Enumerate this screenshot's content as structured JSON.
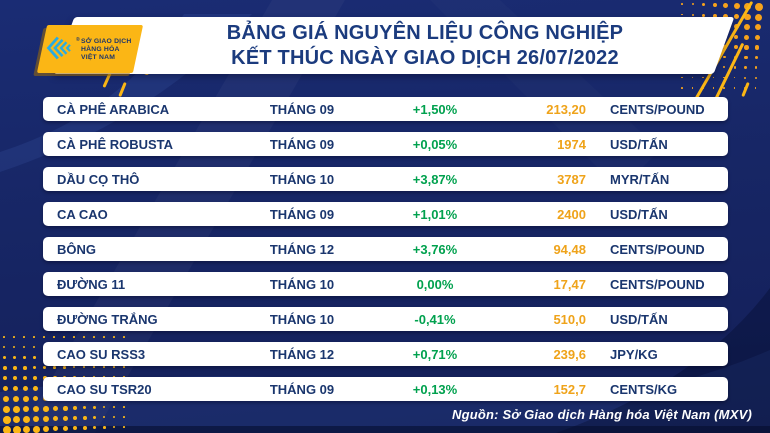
{
  "header": {
    "title_line1": "BẢNG GIÁ NGUYÊN LIỆU CÔNG NGHIỆP",
    "title_line2": "KẾT THÚC NGÀY GIAO DỊCH 26/07/2022",
    "logo": {
      "icon": "mxv-chevron-icon",
      "reg_mark": "®",
      "line1": "SỞ GIAO DỊCH",
      "line2": "HÀNG HÓA",
      "line3": "VIỆT NAM"
    }
  },
  "table": {
    "rows": [
      {
        "name": "CÀ PHÊ ARABICA",
        "month": "THÁNG 09",
        "change": "+1,50%",
        "price": "213,20",
        "unit": "CENTS/POUND"
      },
      {
        "name": "CÀ PHÊ ROBUSTA",
        "month": "THÁNG 09",
        "change": "+0,05%",
        "price": "1974",
        "unit": "USD/TẤN"
      },
      {
        "name": "DẦU CỌ THÔ",
        "month": "THÁNG 10",
        "change": "+3,87%",
        "price": "3787",
        "unit": "MYR/TẤN"
      },
      {
        "name": "CA CAO",
        "month": "THÁNG 09",
        "change": "+1,01%",
        "price": "2400",
        "unit": "USD/TẤN"
      },
      {
        "name": "BÔNG",
        "month": "THÁNG 12",
        "change": "+3,76%",
        "price": "94,48",
        "unit": "CENTS/POUND"
      },
      {
        "name": "ĐƯỜNG 11",
        "month": "THÁNG 10",
        "change": "0,00%",
        "price": "17,47",
        "unit": "CENTS/POUND"
      },
      {
        "name": "ĐƯỜNG TRẮNG",
        "month": "THÁNG 10",
        "change": "-0,41%",
        "price": "510,0",
        "unit": "USD/TẤN"
      },
      {
        "name": "CAO SU RSS3",
        "month": "THÁNG 12",
        "change": "+0,71%",
        "price": "239,6",
        "unit": "JPY/KG"
      },
      {
        "name": "CAO SU TSR20",
        "month": "THÁNG 09",
        "change": "+0,13%",
        "price": "152,7",
        "unit": "CENTS/KG"
      }
    ]
  },
  "footer": {
    "source": "Nguồn: Sở Giao dịch Hàng hóa Việt Nam (MXV)"
  },
  "chart_data": {
    "type": "table",
    "title": "BẢNG GIÁ NGUYÊN LIỆU CÔNG NGHIỆP KẾT THÚC NGÀY GIAO DỊCH 26/07/2022",
    "rows": [
      {
        "commodity": "CÀ PHÊ ARABICA",
        "contract_month": "THÁNG 09",
        "change_pct": 1.5,
        "price": 213.2,
        "unit": "CENTS/POUND"
      },
      {
        "commodity": "CÀ PHÊ ROBUSTA",
        "contract_month": "THÁNG 09",
        "change_pct": 0.05,
        "price": 1974,
        "unit": "USD/TẤN"
      },
      {
        "commodity": "DẦU CỌ THÔ",
        "contract_month": "THÁNG 10",
        "change_pct": 3.87,
        "price": 3787,
        "unit": "MYR/TẤN"
      },
      {
        "commodity": "CA CAO",
        "contract_month": "THÁNG 09",
        "change_pct": 1.01,
        "price": 2400,
        "unit": "USD/TẤN"
      },
      {
        "commodity": "BÔNG",
        "contract_month": "THÁNG 12",
        "change_pct": 3.76,
        "price": 94.48,
        "unit": "CENTS/POUND"
      },
      {
        "commodity": "ĐƯỜNG 11",
        "contract_month": "THÁNG 10",
        "change_pct": 0.0,
        "price": 17.47,
        "unit": "CENTS/POUND"
      },
      {
        "commodity": "ĐƯỜNG TRẮNG",
        "contract_month": "THÁNG 10",
        "change_pct": -0.41,
        "price": 510.0,
        "unit": "USD/TẤN"
      },
      {
        "commodity": "CAO SU RSS3",
        "contract_month": "THÁNG 12",
        "change_pct": 0.71,
        "price": 239.6,
        "unit": "JPY/KG"
      },
      {
        "commodity": "CAO SU TSR20",
        "contract_month": "THÁNG 09",
        "change_pct": 0.13,
        "price": 152.7,
        "unit": "CENTS/KG"
      }
    ],
    "source": "Nguồn: Sở Giao dịch Hàng hóa Việt Nam (MXV)"
  },
  "colors": {
    "background_navy": "#16256A",
    "text_navy": "#1A366E",
    "title_navy": "#1B3B7E",
    "change_green": "#00A14E",
    "price_orange": "#EFA31A",
    "accent_yellow": "#FBB615",
    "logo_cyan": "#29ABE2",
    "row_white": "#FFFFFF"
  }
}
